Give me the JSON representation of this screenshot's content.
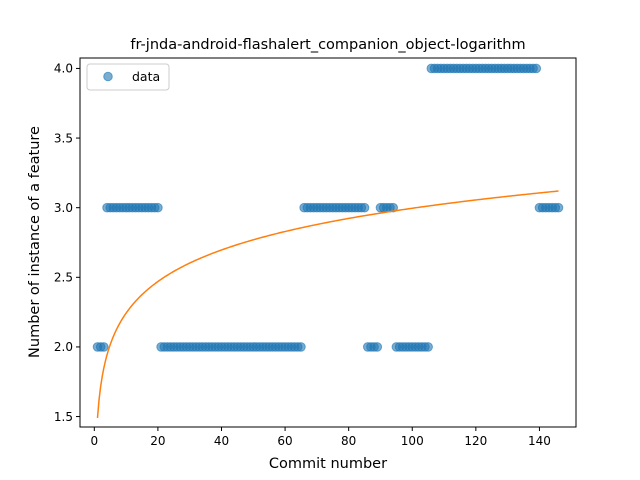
{
  "chart_data": {
    "type": "scatter",
    "title": "fr-jnda-android-flashalert_companion_object-logarithm",
    "xlabel": "Commit number",
    "ylabel": "Number of instance of a feature",
    "xlim": [
      -4.5,
      151.5
    ],
    "ylim": [
      1.425,
      4.075
    ],
    "xticks": [
      0,
      20,
      40,
      60,
      80,
      100,
      120,
      140
    ],
    "yticks": [
      1.5,
      2.0,
      2.5,
      3.0,
      3.5,
      4.0
    ],
    "xtick_labels": [
      "0",
      "20",
      "40",
      "60",
      "80",
      "100",
      "120",
      "140"
    ],
    "ytick_labels": [
      "1.5",
      "2.0",
      "2.5",
      "3.0",
      "3.5",
      "4.0"
    ],
    "legend": {
      "position": "top-left",
      "entries": [
        {
          "label": "data",
          "color": "#1f77b4"
        }
      ]
    },
    "series": [
      {
        "name": "data",
        "kind": "scatter",
        "color": "#1f77b4",
        "runs": [
          {
            "from": 1,
            "to": 3,
            "y": 2
          },
          {
            "from": 4,
            "to": 20,
            "y": 3
          },
          {
            "from": 21,
            "to": 65,
            "y": 2
          },
          {
            "from": 66,
            "to": 85,
            "y": 3
          },
          {
            "from": 86,
            "to": 89,
            "y": 2
          },
          {
            "from": 90,
            "to": 94,
            "y": 3
          },
          {
            "from": 95,
            "to": 105,
            "y": 2
          },
          {
            "from": 106,
            "to": 139,
            "y": 4
          },
          {
            "from": 140,
            "to": 146,
            "y": 3
          }
        ]
      },
      {
        "kind": "line",
        "color": "#ff7f0e",
        "fit": {
          "model": "logarithmic",
          "a": 1.49,
          "b": 0.327,
          "x_start": 1,
          "x_end": 146
        }
      }
    ]
  }
}
